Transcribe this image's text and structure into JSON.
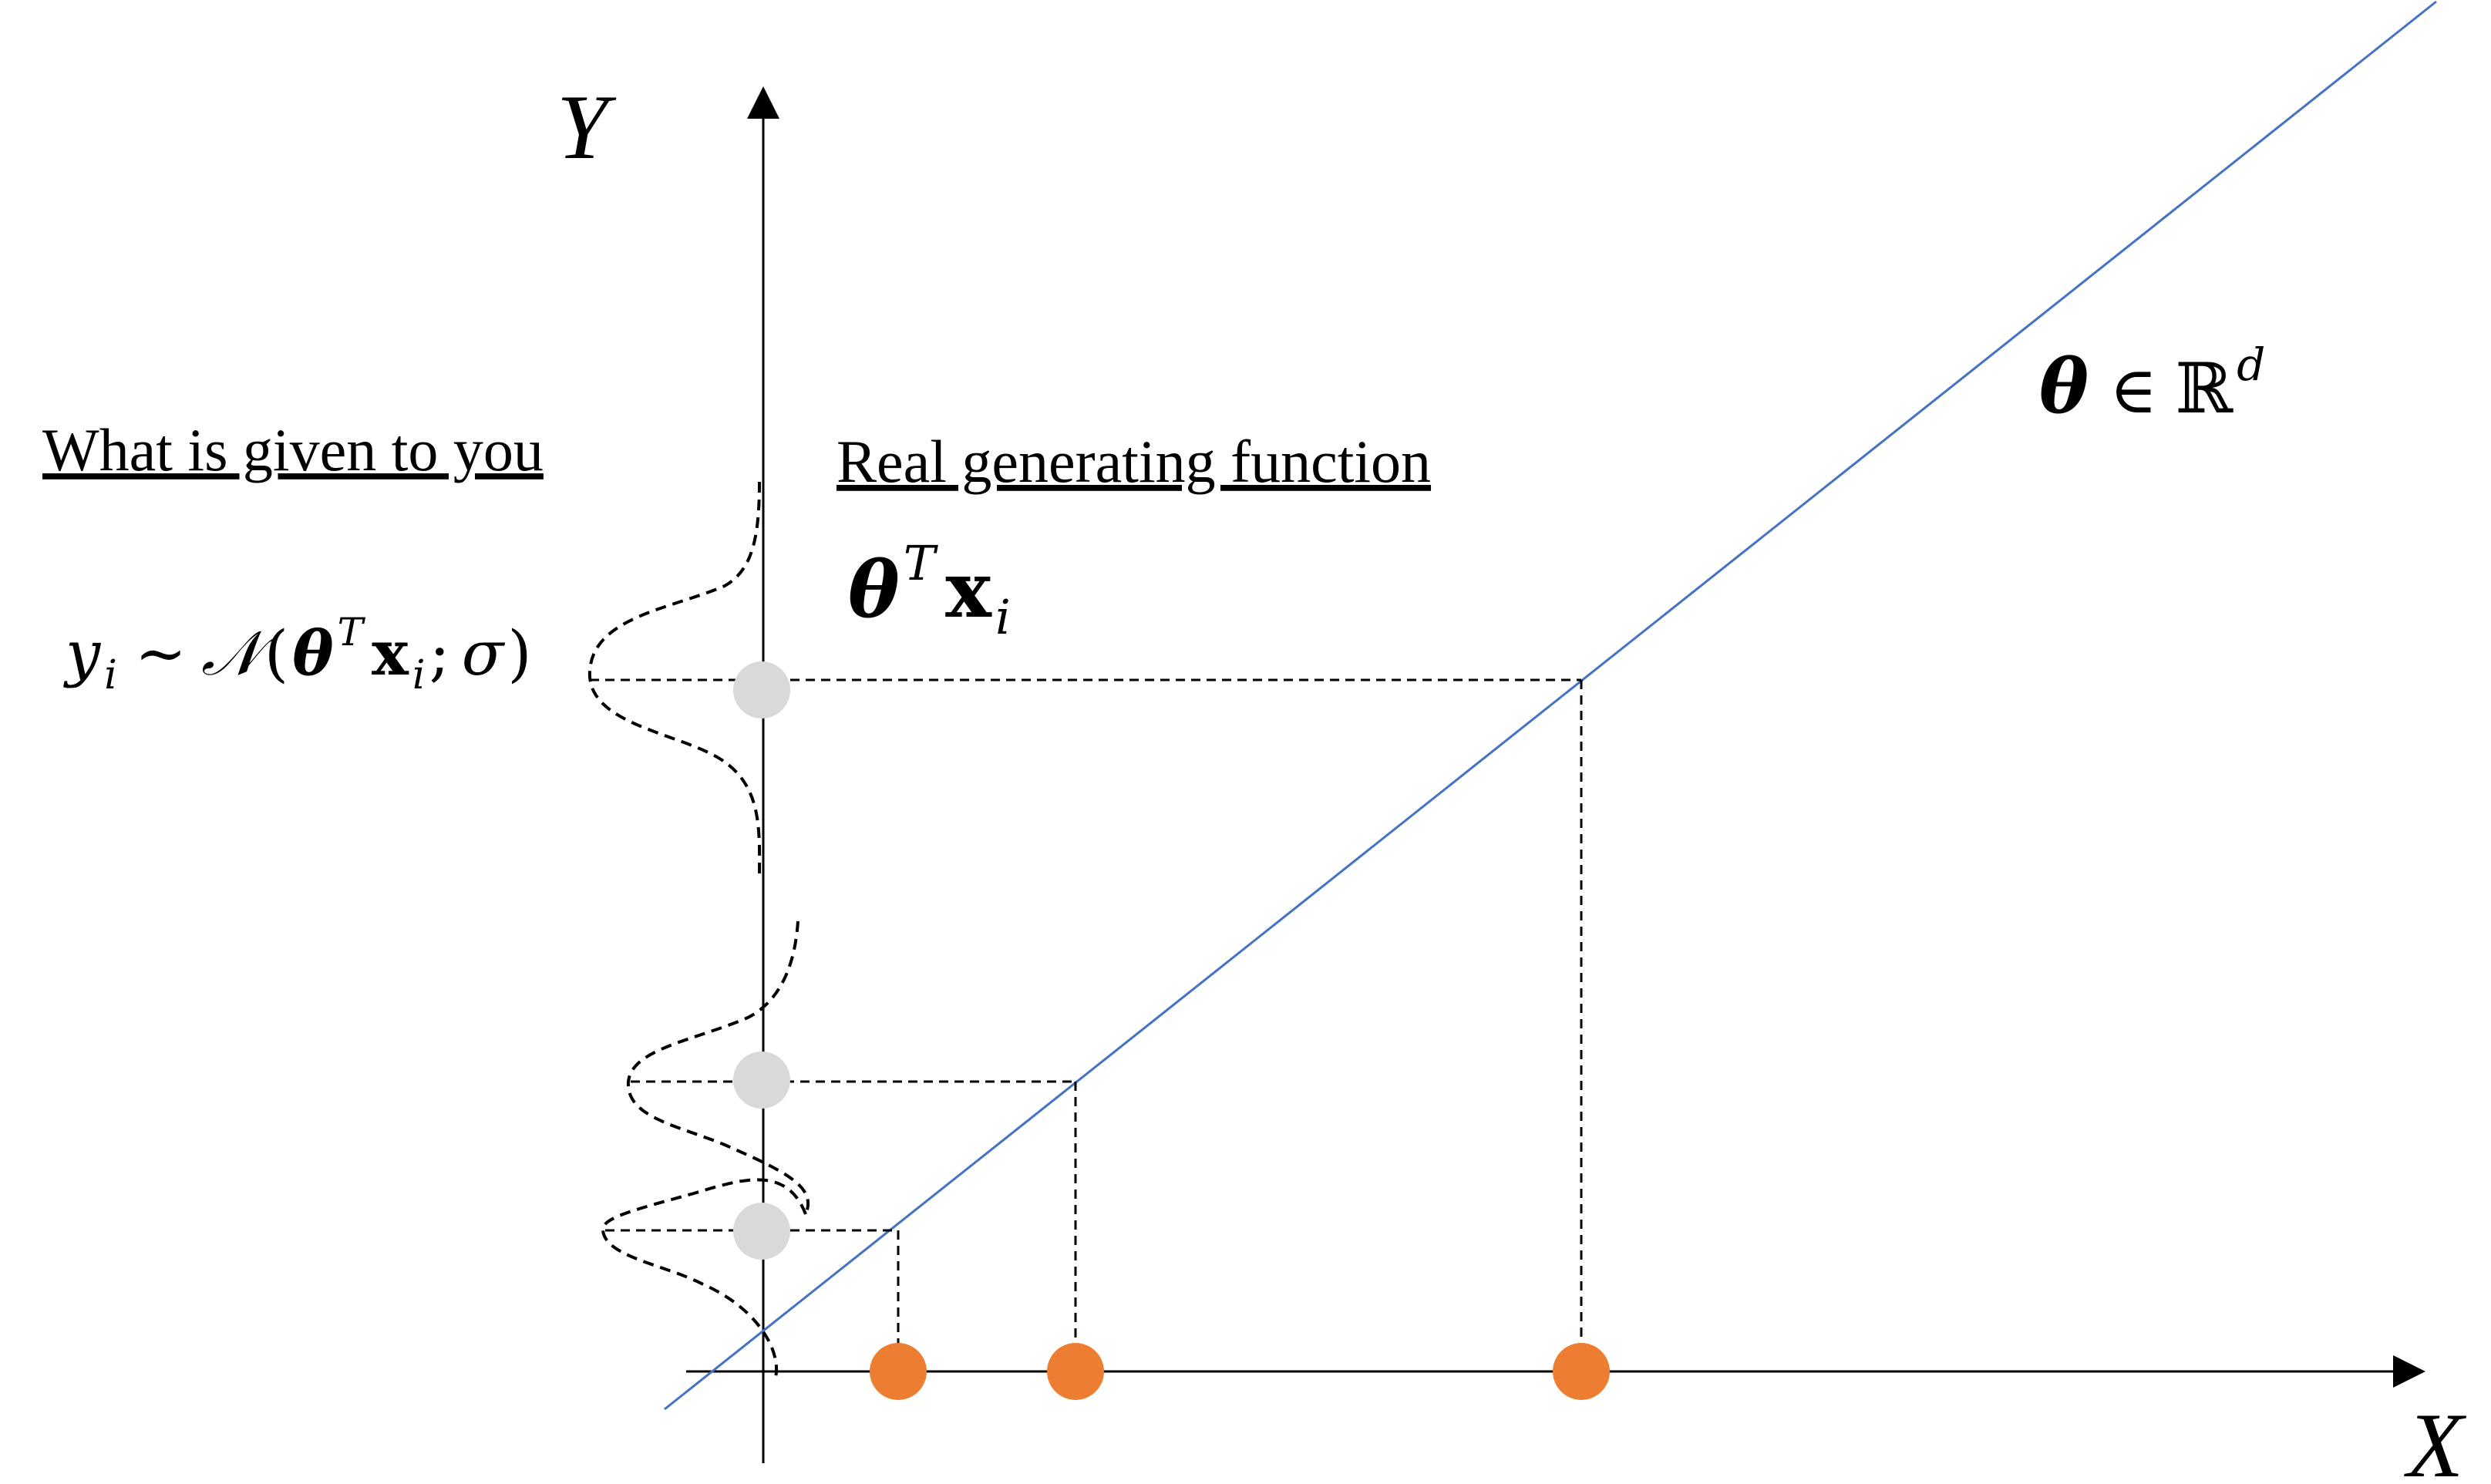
{
  "labels": {
    "given": "What is given to you",
    "generating": "Real generating function",
    "x_axis": "X",
    "y_axis": "Y"
  },
  "math": {
    "param_theta": "θ",
    "param_in": "∈",
    "param_R": "ℝ",
    "param_d": "d",
    "gen_theta": "θ",
    "gen_T": "T",
    "gen_x": "x",
    "gen_i": "i",
    "dist_y": "y",
    "dist_i": "i",
    "dist_sim": "∼",
    "dist_N": "𝒩",
    "dist_open": "(",
    "dist_theta": "θ",
    "dist_T": "T",
    "dist_x": "x",
    "dist_xi": "i",
    "dist_sep": ";",
    "dist_sigma": "σ",
    "dist_close": ")"
  },
  "colors": {
    "regression_line": "#4472c4",
    "x_points": "#ed7d31",
    "y_points": "#d9d9d9",
    "axes": "#000000"
  }
}
